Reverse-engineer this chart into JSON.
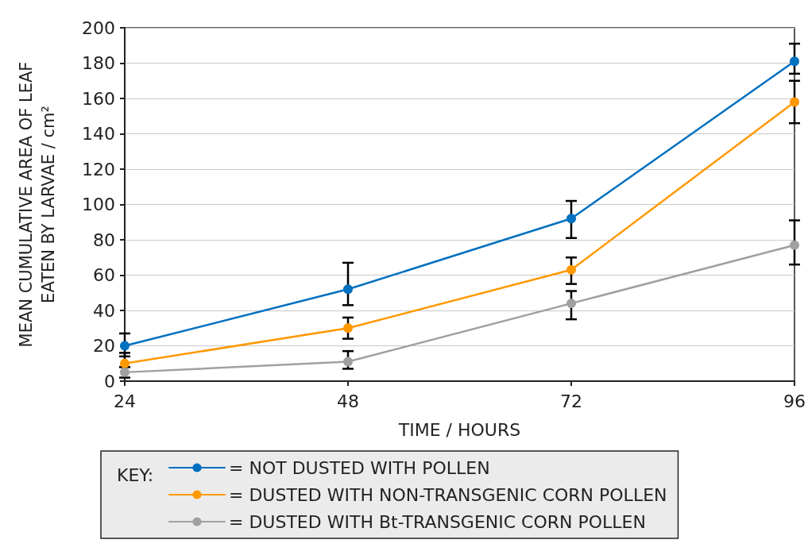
{
  "chart_data": {
    "type": "line",
    "xlabel": "TIME / HOURS",
    "ylabel": "MEAN CUMULATIVE AREA OF LEAF\nEATEN BY LARVAE / cm²",
    "x": [
      24,
      48,
      72,
      96
    ],
    "series": [
      {
        "name": "= NOT DUSTED WITH POLLEN",
        "color": "#0070c0",
        "values": [
          20,
          52,
          92,
          181
        ],
        "errors": [
          [
            14,
            27
          ],
          [
            43,
            67
          ],
          [
            81,
            102
          ],
          [
            174,
            191
          ]
        ]
      },
      {
        "name": "= DUSTED WITH NON-TRANSGENIC CORN POLLEN",
        "color": "#ff9900",
        "values": [
          10,
          30,
          63,
          158
        ],
        "errors": [
          [
            8,
            16
          ],
          [
            24,
            36
          ],
          [
            55,
            70
          ],
          [
            146,
            170
          ]
        ]
      },
      {
        "name": "= DUSTED WITH Bt-TRANSGENIC CORN POLLEN",
        "color": "#a0a0a0",
        "values": [
          5,
          11,
          44,
          77
        ],
        "errors": [
          [
            2,
            8
          ],
          [
            7,
            17
          ],
          [
            35,
            51
          ],
          [
            66,
            91
          ]
        ]
      }
    ],
    "xlim": [
      24,
      96
    ],
    "xticks": [
      24,
      48,
      72,
      96
    ],
    "ylim": [
      0,
      200
    ],
    "yticks": [
      0,
      20,
      40,
      60,
      80,
      100,
      120,
      140,
      160,
      180,
      200
    ],
    "grid": "y",
    "legend": "bottom",
    "legend_title": "KEY:",
    "marker": "circle",
    "line_style": "solid"
  }
}
